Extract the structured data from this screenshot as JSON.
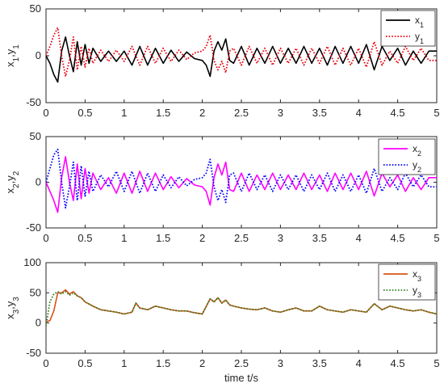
{
  "chart_data": [
    {
      "type": "line",
      "ylabel_base": [
        "x",
        "y"
      ],
      "ylabel_sub": "1",
      "ylim": [
        -50,
        50
      ],
      "yticks": [
        "-50",
        "0",
        "50"
      ],
      "xlim": [
        0,
        5
      ],
      "xticks": [
        "0",
        "0.5",
        "1",
        "1.5",
        "2",
        "2.5",
        "3",
        "3.5",
        "4",
        "4.5",
        "5"
      ],
      "xlabel": "",
      "grid": false,
      "legend_position": "top-right",
      "series": [
        {
          "name": "x",
          "sub": "1",
          "color": "#000000",
          "style": "solid",
          "x": [
            0,
            0.05,
            0.1,
            0.15,
            0.2,
            0.25,
            0.3,
            0.35,
            0.4,
            0.45,
            0.5,
            0.55,
            0.6,
            0.7,
            0.8,
            0.9,
            1.0,
            1.1,
            1.2,
            1.3,
            1.4,
            1.5,
            1.6,
            1.7,
            1.8,
            1.9,
            2.0,
            2.05,
            2.1,
            2.15,
            2.2,
            2.25,
            2.3,
            2.35,
            2.4,
            2.5,
            2.6,
            2.7,
            2.8,
            2.9,
            3.0,
            3.1,
            3.2,
            3.3,
            3.4,
            3.5,
            3.6,
            3.7,
            3.8,
            3.9,
            4.0,
            4.1,
            4.2,
            4.3,
            4.4,
            4.5,
            4.6,
            4.7,
            4.8,
            4.9,
            5.0
          ],
          "y": [
            0,
            -8,
            -20,
            -28,
            5,
            20,
            0,
            -17,
            15,
            -10,
            12,
            -8,
            8,
            -6,
            5,
            -6,
            5,
            -10,
            10,
            -10,
            8,
            -8,
            6,
            -6,
            4,
            -3,
            -5,
            -10,
            -22,
            5,
            15,
            6,
            18,
            -5,
            -8,
            10,
            -10,
            8,
            -8,
            10,
            -8,
            8,
            -8,
            10,
            -8,
            8,
            -10,
            10,
            -8,
            10,
            -8,
            12,
            -15,
            10,
            -5,
            8,
            -10,
            5,
            -8,
            5,
            5
          ]
        },
        {
          "name": "y",
          "sub": "1",
          "color": "#e8000b",
          "style": "dotted",
          "x": [
            0,
            0.05,
            0.1,
            0.15,
            0.2,
            0.25,
            0.3,
            0.35,
            0.4,
            0.45,
            0.5,
            0.55,
            0.6,
            0.7,
            0.8,
            0.9,
            1.0,
            1.1,
            1.2,
            1.3,
            1.4,
            1.5,
            1.6,
            1.7,
            1.8,
            1.9,
            2.0,
            2.05,
            2.1,
            2.15,
            2.2,
            2.25,
            2.3,
            2.35,
            2.4,
            2.5,
            2.6,
            2.7,
            2.8,
            2.9,
            3.0,
            3.1,
            3.2,
            3.3,
            3.4,
            3.5,
            3.6,
            3.7,
            3.8,
            3.9,
            4.0,
            4.1,
            4.2,
            4.3,
            4.4,
            4.5,
            4.6,
            4.7,
            4.8,
            4.9,
            5.0
          ],
          "y": [
            0,
            10,
            22,
            30,
            0,
            -22,
            -5,
            20,
            -15,
            10,
            -12,
            8,
            -8,
            6,
            -6,
            6,
            -6,
            10,
            -10,
            10,
            -8,
            8,
            -6,
            6,
            -4,
            3,
            5,
            10,
            22,
            -5,
            -15,
            -6,
            -18,
            5,
            8,
            -10,
            10,
            -8,
            8,
            -10,
            8,
            -8,
            8,
            -10,
            8,
            -8,
            10,
            -10,
            8,
            -10,
            8,
            -12,
            15,
            -10,
            5,
            -8,
            10,
            -5,
            8,
            -5,
            -5
          ]
        }
      ]
    },
    {
      "type": "line",
      "ylabel_base": [
        "x",
        "y"
      ],
      "ylabel_sub": "2",
      "ylim": [
        -50,
        50
      ],
      "yticks": [
        "-50",
        "0",
        "50"
      ],
      "xlim": [
        0,
        5
      ],
      "xticks": [
        "0",
        "0.5",
        "1",
        "1.5",
        "2",
        "2.5",
        "3",
        "3.5",
        "4",
        "4.5",
        "5"
      ],
      "xlabel": "",
      "grid": false,
      "legend_position": "top-right",
      "series": [
        {
          "name": "x",
          "sub": "2",
          "color": "#ff00ff",
          "style": "solid",
          "x": [
            0,
            0.05,
            0.1,
            0.15,
            0.2,
            0.25,
            0.3,
            0.35,
            0.4,
            0.45,
            0.5,
            0.55,
            0.6,
            0.7,
            0.8,
            0.9,
            1.0,
            1.1,
            1.2,
            1.3,
            1.4,
            1.5,
            1.6,
            1.7,
            1.8,
            1.9,
            2.0,
            2.05,
            2.1,
            2.15,
            2.2,
            2.25,
            2.3,
            2.35,
            2.4,
            2.5,
            2.6,
            2.7,
            2.8,
            2.9,
            3.0,
            3.1,
            3.2,
            3.3,
            3.4,
            3.5,
            3.6,
            3.7,
            3.8,
            3.9,
            4.0,
            4.1,
            4.2,
            4.3,
            4.4,
            4.5,
            4.6,
            4.7,
            4.8,
            4.9,
            5.0
          ],
          "y": [
            0,
            -10,
            -20,
            -33,
            5,
            28,
            0,
            -20,
            20,
            -18,
            15,
            -12,
            10,
            -8,
            5,
            -12,
            10,
            -12,
            12,
            -10,
            10,
            -8,
            6,
            -6,
            4,
            -3,
            -5,
            -10,
            -25,
            5,
            20,
            8,
            22,
            -8,
            -10,
            10,
            -10,
            8,
            -8,
            10,
            -8,
            8,
            -8,
            10,
            -8,
            8,
            -10,
            10,
            -8,
            10,
            -8,
            12,
            -15,
            10,
            -5,
            8,
            -10,
            5,
            -8,
            5,
            5
          ]
        },
        {
          "name": "y",
          "sub": "2",
          "color": "#0000ff",
          "style": "dotted",
          "x": [
            0,
            0.05,
            0.1,
            0.15,
            0.2,
            0.25,
            0.3,
            0.35,
            0.4,
            0.45,
            0.5,
            0.55,
            0.6,
            0.7,
            0.8,
            0.9,
            1.0,
            1.1,
            1.2,
            1.3,
            1.4,
            1.5,
            1.6,
            1.7,
            1.8,
            1.9,
            2.0,
            2.05,
            2.1,
            2.15,
            2.2,
            2.25,
            2.3,
            2.35,
            2.4,
            2.5,
            2.6,
            2.7,
            2.8,
            2.9,
            3.0,
            3.1,
            3.2,
            3.3,
            3.4,
            3.5,
            3.6,
            3.7,
            3.8,
            3.9,
            4.0,
            4.1,
            4.2,
            4.3,
            4.4,
            4.5,
            4.6,
            4.7,
            4.8,
            4.9,
            5.0
          ],
          "y": [
            0,
            15,
            30,
            36,
            0,
            -28,
            -5,
            22,
            -20,
            18,
            -15,
            12,
            -10,
            8,
            -5,
            12,
            -10,
            12,
            -12,
            10,
            -10,
            8,
            -6,
            6,
            -4,
            3,
            5,
            10,
            25,
            -5,
            -20,
            -8,
            -22,
            8,
            10,
            -10,
            10,
            -8,
            8,
            -10,
            8,
            -8,
            8,
            -10,
            8,
            -8,
            10,
            -10,
            8,
            -10,
            8,
            -12,
            15,
            -10,
            5,
            -8,
            10,
            -5,
            8,
            -5,
            -5
          ]
        }
      ]
    },
    {
      "type": "line",
      "ylabel_base": [
        "x",
        "y"
      ],
      "ylabel_sub": "3",
      "ylim": [
        -50,
        100
      ],
      "yticks": [
        "-50",
        "0",
        "50",
        "100"
      ],
      "xlim": [
        0,
        5
      ],
      "xticks": [
        "0",
        "0.5",
        "1",
        "1.5",
        "2",
        "2.5",
        "3",
        "3.5",
        "4",
        "4.5",
        "5"
      ],
      "xlabel": "time t/s",
      "grid": false,
      "legend_position": "top-right",
      "series": [
        {
          "name": "x",
          "sub": "3",
          "color": "#d95319",
          "style": "solid",
          "x": [
            0,
            0.05,
            0.1,
            0.15,
            0.2,
            0.25,
            0.3,
            0.35,
            0.4,
            0.45,
            0.5,
            0.6,
            0.7,
            0.8,
            0.9,
            1.0,
            1.1,
            1.15,
            1.2,
            1.3,
            1.4,
            1.5,
            1.6,
            1.7,
            1.8,
            1.9,
            2.0,
            2.1,
            2.15,
            2.2,
            2.25,
            2.3,
            2.35,
            2.4,
            2.5,
            2.6,
            2.7,
            2.8,
            2.9,
            3.0,
            3.1,
            3.2,
            3.3,
            3.4,
            3.5,
            3.6,
            3.7,
            3.8,
            3.9,
            4.0,
            4.1,
            4.2,
            4.3,
            4.4,
            4.5,
            4.6,
            4.7,
            4.8,
            4.9,
            5.0
          ],
          "y": [
            2,
            4,
            20,
            50,
            50,
            55,
            48,
            52,
            45,
            42,
            35,
            28,
            22,
            20,
            18,
            15,
            18,
            33,
            25,
            22,
            28,
            25,
            22,
            20,
            20,
            17,
            15,
            40,
            35,
            42,
            33,
            38,
            30,
            28,
            25,
            23,
            22,
            25,
            20,
            18,
            22,
            25,
            20,
            20,
            28,
            22,
            20,
            18,
            22,
            20,
            18,
            32,
            22,
            28,
            25,
            22,
            20,
            22,
            18,
            15
          ]
        },
        {
          "name": "y",
          "sub": "3",
          "color": "#2e7d1e",
          "style": "dotted",
          "x": [
            0,
            0.05,
            0.1,
            0.15,
            0.2,
            0.25,
            0.3,
            0.35,
            0.4,
            0.45,
            0.5,
            0.6,
            0.7,
            0.8,
            0.9,
            1.0,
            1.1,
            1.15,
            1.2,
            1.3,
            1.4,
            1.5,
            1.6,
            1.7,
            1.8,
            1.9,
            2.0,
            2.1,
            2.15,
            2.2,
            2.25,
            2.3,
            2.35,
            2.4,
            2.5,
            2.6,
            2.7,
            2.8,
            2.9,
            3.0,
            3.1,
            3.2,
            3.3,
            3.4,
            3.5,
            3.6,
            3.7,
            3.8,
            3.9,
            4.0,
            4.1,
            4.2,
            4.3,
            4.4,
            4.5,
            4.6,
            4.7,
            4.8,
            4.9,
            5.0
          ],
          "y": [
            -5,
            35,
            48,
            52,
            48,
            52,
            46,
            50,
            45,
            42,
            35,
            28,
            22,
            20,
            18,
            15,
            18,
            33,
            25,
            22,
            28,
            25,
            22,
            20,
            20,
            17,
            15,
            40,
            35,
            42,
            33,
            38,
            30,
            28,
            25,
            23,
            22,
            25,
            20,
            18,
            22,
            25,
            20,
            20,
            28,
            22,
            20,
            18,
            22,
            20,
            18,
            32,
            22,
            28,
            25,
            22,
            20,
            22,
            18,
            15
          ]
        }
      ]
    }
  ]
}
